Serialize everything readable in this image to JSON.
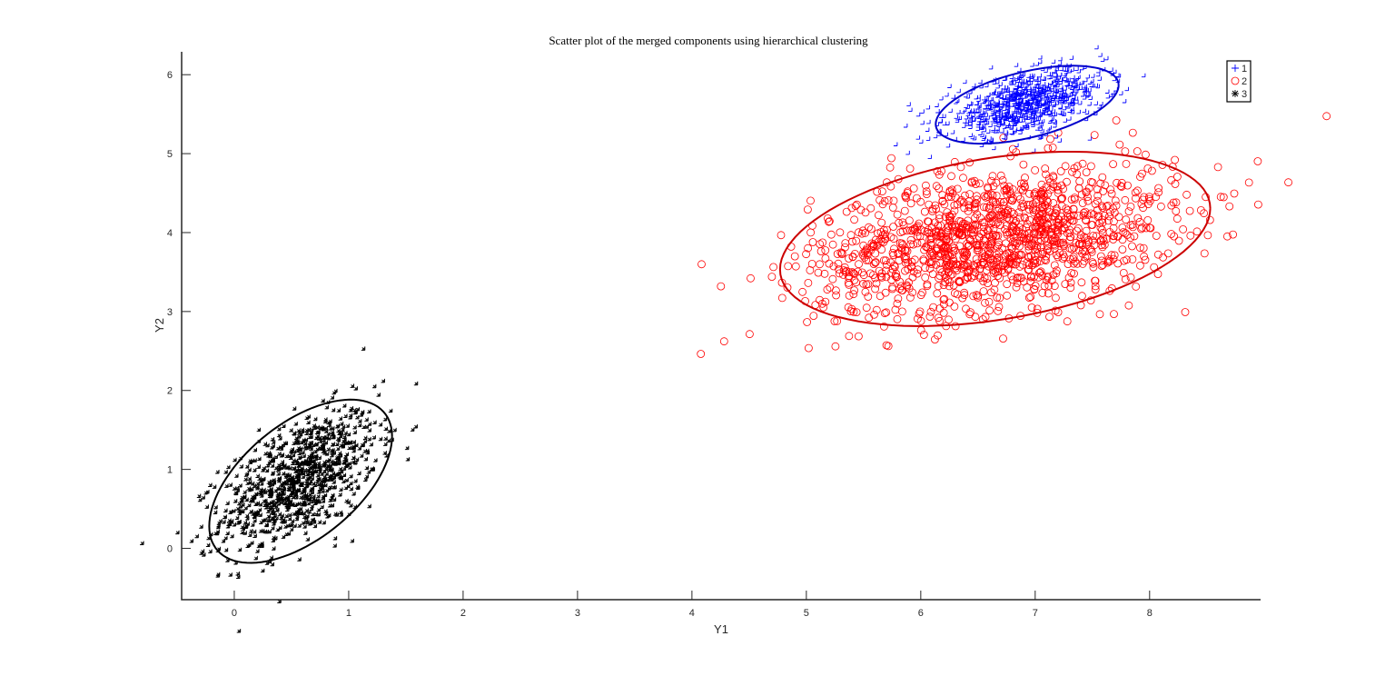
{
  "chart_data": {
    "type": "scatter",
    "title": "Scatter plot of the merged components using hierarchical clustering",
    "xlabel": "Y1",
    "ylabel": "Y2",
    "xlim": [
      -0.46,
      8.97
    ],
    "ylim": [
      -0.65,
      6.29
    ],
    "xticks": [
      0,
      1,
      2,
      3,
      4,
      5,
      6,
      7,
      8
    ],
    "yticks": [
      0,
      1,
      2,
      3,
      4,
      5,
      6
    ],
    "grid": false,
    "legend": {
      "placement": "top-right",
      "entries": [
        "1",
        "2",
        "3"
      ]
    },
    "series": [
      {
        "name": "1",
        "marker": "plus",
        "color": "#0000ff",
        "ellipse_color": "#0000cc",
        "count": 900,
        "mean": [
          6.93,
          5.62
        ],
        "std": [
          0.34,
          0.21
        ],
        "rho": 0.5
      },
      {
        "name": "2",
        "marker": "circle",
        "color": "#ff0000",
        "ellipse_color": "#cc0000",
        "count": 1400,
        "mean": [
          6.65,
          3.92
        ],
        "std": [
          0.8,
          0.47
        ],
        "rho": 0.35
      },
      {
        "name": "3",
        "marker": "asterisk",
        "color": "#000000",
        "ellipse_color": "#000000",
        "count": 1000,
        "mean": [
          0.58,
          0.85
        ],
        "std": [
          0.34,
          0.44
        ],
        "rho": 0.55
      }
    ],
    "ellipse_sigma": 2.35
  }
}
